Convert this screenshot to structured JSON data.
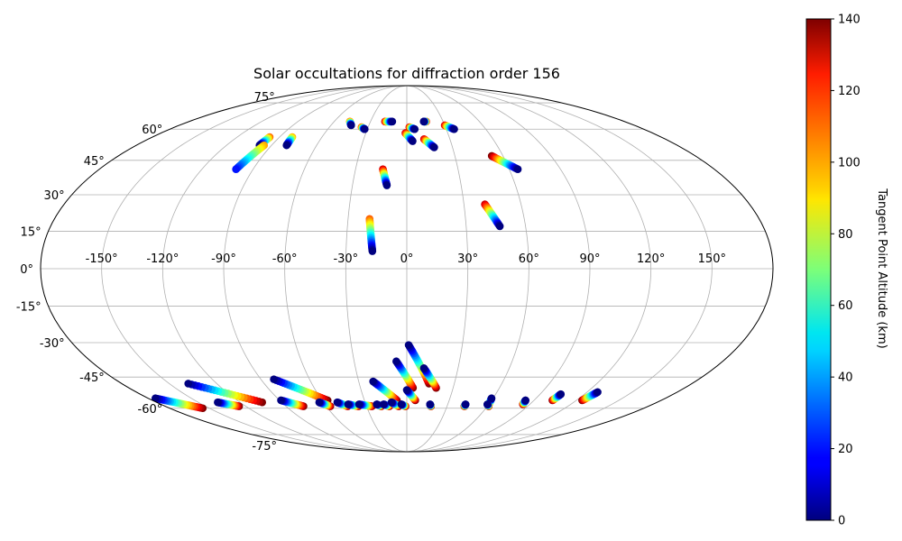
{
  "chart_data": {
    "type": "scatter",
    "projection": "mollweide",
    "title": "Solar occultations for diffraction order 156",
    "colorbar": {
      "label": "Tangent Point Altitude (km)",
      "range": [
        0,
        140
      ],
      "ticks": [
        "0",
        "20",
        "40",
        "60",
        "80",
        "100",
        "120",
        "140"
      ],
      "colormap": "jet"
    },
    "lon_ticks": [
      "-150°",
      "-120°",
      "-90°",
      "-60°",
      "-30°",
      "0°",
      "30°",
      "60°",
      "90°",
      "120°",
      "150°"
    ],
    "lat_ticks": [
      "-75°",
      "-60°",
      "-45°",
      "-30°",
      "-15°",
      "0°",
      "15°",
      "30°",
      "45°",
      "60°",
      "75°"
    ],
    "grid": true,
    "tracks": [
      {
        "start": [
          -98,
          52
        ],
        "end": [
          -97,
          56
        ],
        "alt": [
          0,
          110
        ]
      },
      {
        "start": [
          -80,
          52
        ],
        "end": [
          -81,
          56
        ],
        "alt": [
          0,
          100
        ]
      },
      {
        "start": [
          -100,
          41
        ],
        "end": [
          -95,
          52
        ],
        "alt": [
          20,
          100
        ]
      },
      {
        "start": [
          -44,
          62
        ],
        "end": [
          -47,
          64
        ],
        "alt": [
          0,
          110
        ]
      },
      {
        "start": [
          -32,
          60
        ],
        "end": [
          -35,
          61
        ],
        "alt": [
          0,
          120
        ]
      },
      {
        "start": [
          -12,
          64
        ],
        "end": [
          -18,
          64
        ],
        "alt": [
          0,
          130
        ]
      },
      {
        "start": [
          14,
          64
        ],
        "end": [
          16,
          64
        ],
        "alt": [
          0,
          130
        ]
      },
      {
        "start": [
          36,
          60
        ],
        "end": [
          30,
          62
        ],
        "alt": [
          0,
          130
        ]
      },
      {
        "start": [
          6,
          60
        ],
        "end": [
          2,
          61
        ],
        "alt": [
          0,
          130
        ]
      },
      {
        "start": [
          4,
          54
        ],
        "end": [
          -1,
          58
        ],
        "alt": [
          0,
          130
        ]
      },
      {
        "start": [
          18,
          51
        ],
        "end": [
          12,
          55
        ],
        "alt": [
          0,
          130
        ]
      },
      {
        "start": [
          65,
          41
        ],
        "end": [
          53,
          47
        ],
        "alt": [
          0,
          140
        ]
      },
      {
        "start": [
          -11,
          34
        ],
        "end": [
          -14,
          41
        ],
        "alt": [
          0,
          130
        ]
      },
      {
        "start": [
          -17,
          7
        ],
        "end": [
          -19,
          20
        ],
        "alt": [
          0,
          110
        ]
      },
      {
        "start": [
          47,
          17
        ],
        "end": [
          41,
          26
        ],
        "alt": [
          0,
          130
        ]
      },
      {
        "start": [
          -175,
          -55
        ],
        "end": [
          -155,
          -60
        ],
        "alt": [
          0,
          140
        ]
      },
      {
        "start": [
          -138,
          -48
        ],
        "end": [
          -104,
          -57
        ],
        "alt": [
          0,
          140
        ]
      },
      {
        "start": [
          -136,
          -57
        ],
        "end": [
          -125,
          -59
        ],
        "alt": [
          0,
          140
        ]
      },
      {
        "start": [
          -89,
          -56
        ],
        "end": [
          -77,
          -59
        ],
        "alt": [
          0,
          140
        ]
      },
      {
        "start": [
          -82,
          -46
        ],
        "end": [
          -56,
          -56
        ],
        "alt": [
          0,
          140
        ]
      },
      {
        "start": [
          -63,
          -57
        ],
        "end": [
          -57,
          -59
        ],
        "alt": [
          0,
          140
        ]
      },
      {
        "start": [
          -50,
          -57
        ],
        "end": [
          -44,
          -59
        ],
        "alt": [
          0,
          140
        ]
      },
      {
        "start": [
          -43,
          -58
        ],
        "end": [
          -36,
          -59
        ],
        "alt": [
          0,
          140
        ]
      },
      {
        "start": [
          -35,
          -58
        ],
        "end": [
          -26,
          -59
        ],
        "alt": [
          0,
          140
        ]
      },
      {
        "start": [
          -22,
          -58
        ],
        "end": [
          -19,
          -59
        ],
        "alt": [
          0,
          140
        ]
      },
      {
        "start": [
          -21,
          -47
        ],
        "end": [
          -7,
          -56
        ],
        "alt": [
          0,
          140
        ]
      },
      {
        "start": [
          -17,
          -58
        ],
        "end": [
          -13,
          -59
        ],
        "alt": [
          0,
          140
        ]
      },
      {
        "start": [
          -11,
          -57
        ],
        "end": [
          -6,
          -59
        ],
        "alt": [
          0,
          140
        ]
      },
      {
        "start": [
          -4,
          -58
        ],
        "end": [
          -1,
          -59
        ],
        "alt": [
          0,
          140
        ]
      },
      {
        "start": [
          -6,
          -38
        ],
        "end": [
          4,
          -50
        ],
        "alt": [
          0,
          140
        ]
      },
      {
        "start": [
          1,
          -31
        ],
        "end": [
          14,
          -48
        ],
        "alt": [
          0,
          140
        ]
      },
      {
        "start": [
          10,
          -41
        ],
        "end": [
          19,
          -50
        ],
        "alt": [
          0,
          140
        ]
      },
      {
        "start": [
          0,
          -51
        ],
        "end": [
          6,
          -56
        ],
        "alt": [
          0,
          140
        ]
      },
      {
        "start": [
          17,
          -58
        ],
        "end": [
          18,
          -59
        ],
        "alt": [
          0,
          140
        ]
      },
      {
        "start": [
          43,
          -58
        ],
        "end": [
          43,
          -59
        ],
        "alt": [
          0,
          140
        ]
      },
      {
        "start": [
          59,
          -55
        ],
        "end": [
          60,
          -58
        ],
        "alt": [
          0,
          140
        ]
      },
      {
        "start": [
          59,
          -58
        ],
        "end": [
          61,
          -59
        ],
        "alt": [
          0,
          140
        ]
      },
      {
        "start": [
          84,
          -56
        ],
        "end": [
          85,
          -58
        ],
        "alt": [
          0,
          140
        ]
      },
      {
        "start": [
          104,
          -53
        ],
        "end": [
          103,
          -56
        ],
        "alt": [
          0,
          140
        ]
      },
      {
        "start": [
          127,
          -52
        ],
        "end": [
          124,
          -56
        ],
        "alt": [
          0,
          140
        ]
      }
    ]
  }
}
